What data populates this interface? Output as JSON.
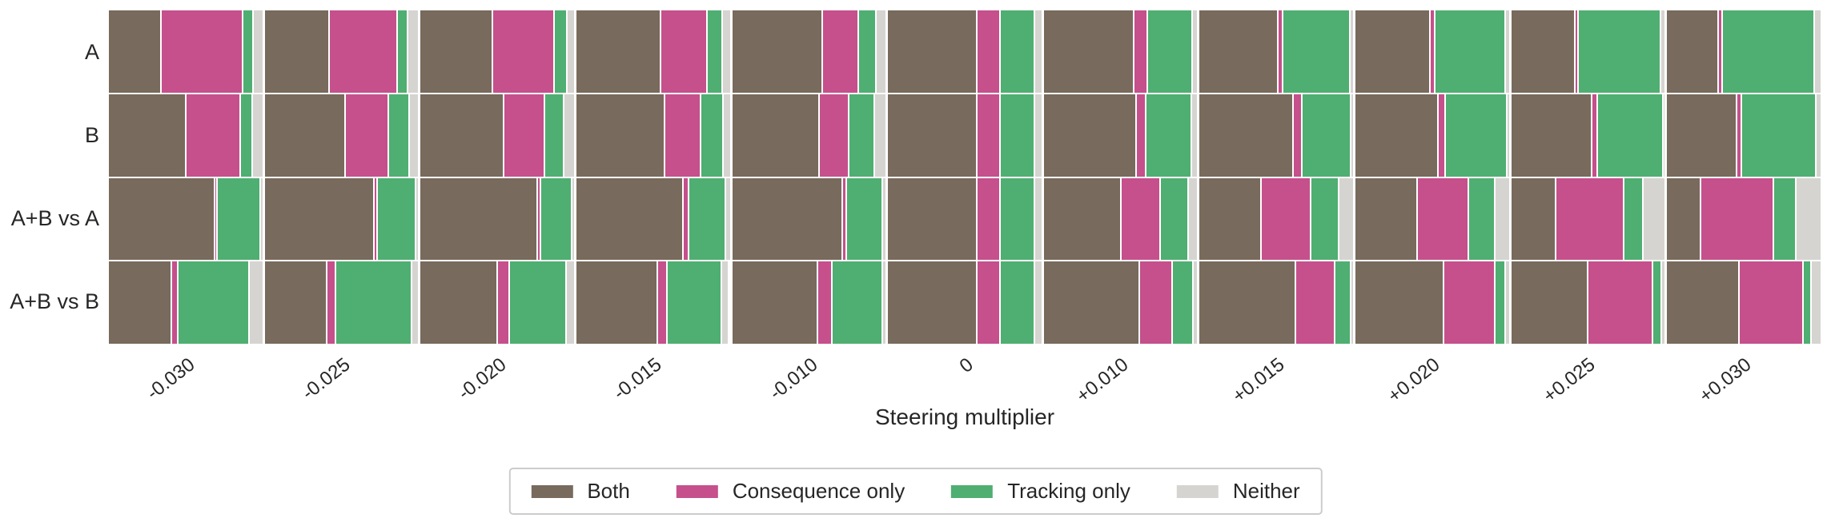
{
  "chart_data": {
    "type": "bar",
    "variant": "100pct-stacked-horizontal-grid",
    "xlabel": "Steering multiplier",
    "grid": false,
    "legend_position": "bottom-center",
    "categories": [
      "-0.030",
      "-0.025",
      "-0.020",
      "-0.015",
      "-0.010",
      "0",
      "+0.010",
      "+0.015",
      "+0.020",
      "+0.025",
      "+0.030"
    ],
    "row_labels": [
      "A",
      "B",
      "A+B vs A",
      "A+B vs B"
    ],
    "segments": [
      {
        "name": "Both",
        "color": "#786a5c"
      },
      {
        "name": "Consequence only",
        "color": "#c5508c"
      },
      {
        "name": "Tracking only",
        "color": "#4fae71"
      },
      {
        "name": "Neither",
        "color": "#d6d4d1"
      }
    ],
    "rows": [
      {
        "label": "A",
        "cells": [
          [
            0.345,
            0.54,
            0.058,
            0.057
          ],
          [
            0.425,
            0.45,
            0.057,
            0.068
          ],
          [
            0.476,
            0.407,
            0.074,
            0.043
          ],
          [
            0.56,
            0.302,
            0.09,
            0.048
          ],
          [
            0.599,
            0.235,
            0.104,
            0.062
          ],
          [
            0.592,
            0.143,
            0.221,
            0.044
          ],
          [
            0.598,
            0.082,
            0.292,
            0.028
          ],
          [
            0.521,
            0.023,
            0.441,
            0.015
          ],
          [
            0.494,
            0.021,
            0.467,
            0.018
          ],
          [
            0.421,
            0.012,
            0.542,
            0.025
          ],
          [
            0.338,
            0.016,
            0.607,
            0.039
          ]
        ]
      },
      {
        "label": "B",
        "cells": [
          [
            0.514,
            0.355,
            0.068,
            0.063
          ],
          [
            0.536,
            0.28,
            0.126,
            0.058
          ],
          [
            0.553,
            0.266,
            0.117,
            0.064
          ],
          [
            0.586,
            0.233,
            0.141,
            0.04
          ],
          [
            0.581,
            0.186,
            0.163,
            0.07
          ],
          [
            0.592,
            0.143,
            0.221,
            0.044
          ],
          [
            0.615,
            0.055,
            0.296,
            0.034
          ],
          [
            0.624,
            0.044,
            0.322,
            0.01
          ],
          [
            0.551,
            0.036,
            0.403,
            0.01
          ],
          [
            0.533,
            0.03,
            0.428,
            0.009
          ],
          [
            0.461,
            0.021,
            0.49,
            0.028
          ]
        ]
      },
      {
        "label": "A+B vs A",
        "cells": [
          [
            0.705,
            0.008,
            0.277,
            0.01
          ],
          [
            0.73,
            0.01,
            0.245,
            0.015
          ],
          [
            0.782,
            0.006,
            0.202,
            0.01
          ],
          [
            0.712,
            0.026,
            0.236,
            0.026
          ],
          [
            0.733,
            0.018,
            0.231,
            0.018
          ],
          [
            0.592,
            0.143,
            0.221,
            0.044
          ],
          [
            0.512,
            0.254,
            0.176,
            0.058
          ],
          [
            0.406,
            0.325,
            0.176,
            0.093
          ],
          [
            0.409,
            0.334,
            0.167,
            0.09
          ],
          [
            0.293,
            0.448,
            0.116,
            0.143
          ],
          [
            0.22,
            0.479,
            0.141,
            0.16
          ]
        ]
      },
      {
        "label": "A+B vs B",
        "cells": [
          [
            0.414,
            0.031,
            0.473,
            0.082
          ],
          [
            0.41,
            0.052,
            0.5,
            0.038
          ],
          [
            0.51,
            0.069,
            0.375,
            0.046
          ],
          [
            0.538,
            0.057,
            0.355,
            0.034
          ],
          [
            0.567,
            0.088,
            0.327,
            0.018
          ],
          [
            0.592,
            0.143,
            0.221,
            0.044
          ],
          [
            0.639,
            0.206,
            0.132,
            0.023
          ],
          [
            0.639,
            0.254,
            0.097,
            0.01
          ],
          [
            0.589,
            0.33,
            0.063,
            0.018
          ],
          [
            0.509,
            0.424,
            0.051,
            0.016
          ],
          [
            0.478,
            0.421,
            0.044,
            0.057
          ]
        ]
      }
    ],
    "legend": {
      "labels": [
        "Both",
        "Consequence only",
        "Tracking only",
        "Neither"
      ]
    }
  }
}
